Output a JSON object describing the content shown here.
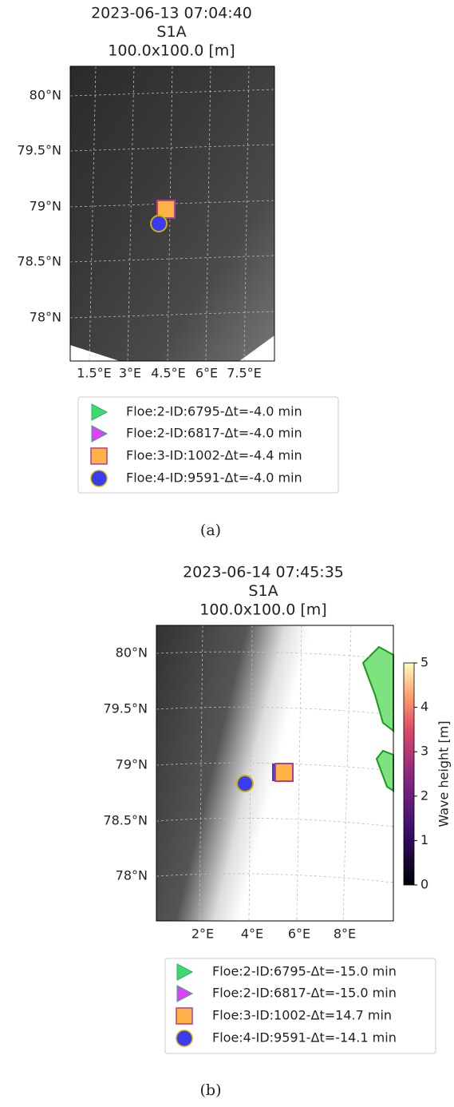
{
  "panels": [
    {
      "title": [
        "2023-06-13 07:04:40",
        "S1A",
        "100.0x100.0 [m]"
      ],
      "yticks": [
        "80°N",
        "79.5°N",
        "79°N",
        "78.5°N",
        "78°N"
      ],
      "xticks": [
        "1.5°E",
        "3°E",
        "4.5°E",
        "6°E",
        "7.5°E"
      ],
      "legend": [
        {
          "label": "Floe:2-ID:6795-Δt=-4.0 min",
          "marker": "triangle",
          "color": "#3ddc6a"
        },
        {
          "label": "Floe:2-ID:6817-Δt=-4.0 min",
          "marker": "triangle",
          "color": "#e040fb"
        },
        {
          "label": "Floe:3-ID:1002-Δt=-4.4 min",
          "marker": "square",
          "color": "#ffb347"
        },
        {
          "label": "Floe:4-ID:9591-Δt=-4.0 min",
          "marker": "circle",
          "color": "#3b3bf0"
        }
      ],
      "caption": "(a)"
    },
    {
      "title": [
        "2023-06-14 07:45:35",
        "S1A",
        "100.0x100.0 [m]"
      ],
      "yticks": [
        "80°N",
        "79.5°N",
        "79°N",
        "78.5°N",
        "78°N"
      ],
      "xticks": [
        "2°E",
        "4°E",
        "6°E",
        "8°E"
      ],
      "legend": [
        {
          "label": "Floe:2-ID:6795-Δt=-15.0 min",
          "marker": "triangle",
          "color": "#3ddc6a"
        },
        {
          "label": "Floe:2-ID:6817-Δt=-15.0 min",
          "marker": "triangle",
          "color": "#e040fb"
        },
        {
          "label": "Floe:3-ID:1002-Δt=14.7 min",
          "marker": "square",
          "color": "#ffb347"
        },
        {
          "label": "Floe:4-ID:9591-Δt=-14.1 min",
          "marker": "circle",
          "color": "#3b3bf0"
        }
      ],
      "caption": "(b)",
      "colorbar": {
        "label": "Wave height [m]",
        "lim": [
          0,
          5
        ],
        "ticks": [
          0,
          1,
          2,
          3,
          4,
          5
        ]
      }
    }
  ]
}
